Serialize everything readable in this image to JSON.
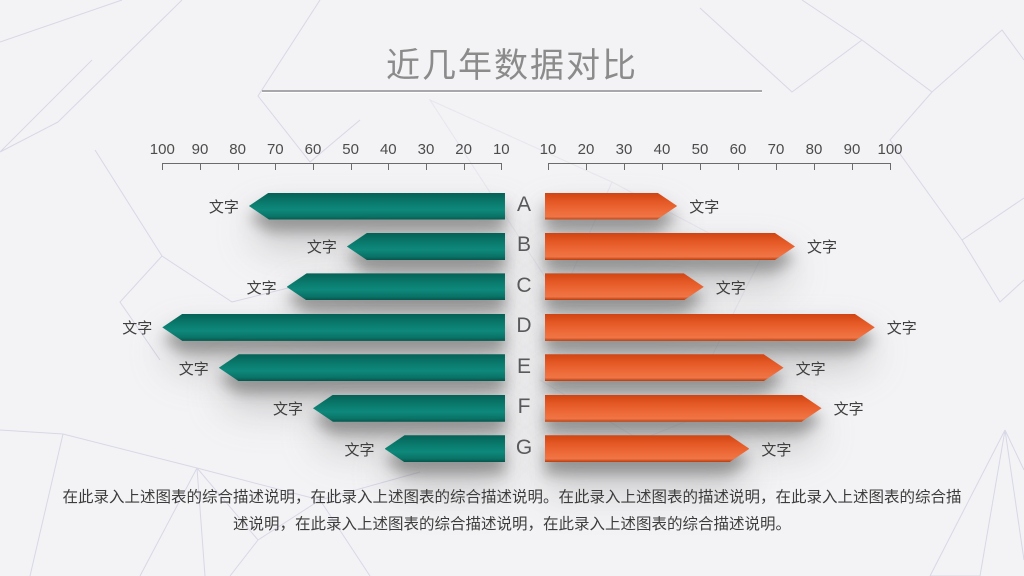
{
  "slide": {
    "title": "近几年数据对比",
    "description": "在此录入上述图表的综合描述说明，在此录入上述图表的综合描述说明。在此录入上述图表的描述说明，在此录入上述图表的综合描述说明，在此录入上述图表的综合描述说明，在此录入上述图表的综合描述说明。"
  },
  "colors": {
    "background": "#f3f3f5",
    "title_text": "#8b8b8b",
    "divider": "#a8a8ac",
    "axis_text": "#4c4c4c",
    "category_text": "#58595b",
    "bar_label_text": "#3f3f3f",
    "left_bar_teal": "#0c8174",
    "right_bar_orange": "#e9622c",
    "pattern_line": "#d3d3e4"
  },
  "chart_data": {
    "type": "bar",
    "variant": "tornado-comparison",
    "title": "近几年数据对比",
    "categories": [
      "A",
      "B",
      "C",
      "D",
      "E",
      "F",
      "G"
    ],
    "series": [
      {
        "name": "left-teal",
        "side": "left",
        "color": "#0c8174",
        "bar_end_label": "文字",
        "values": [
          77,
          51,
          67,
          100,
          85,
          60,
          41
        ]
      },
      {
        "name": "right-orange",
        "side": "right",
        "color": "#e9622c",
        "bar_end_label": "文字",
        "values": [
          44,
          75,
          51,
          96,
          72,
          82,
          63
        ]
      }
    ],
    "axes": {
      "min": 10,
      "max": 100,
      "step": 10,
      "left_ticks": [
        "100",
        "90",
        "80",
        "70",
        "60",
        "50",
        "40",
        "30",
        "20",
        "10"
      ],
      "right_ticks": [
        "10",
        "20",
        "30",
        "40",
        "50",
        "60",
        "70",
        "80",
        "90",
        "100"
      ]
    },
    "legend": "none",
    "grid": "off"
  }
}
